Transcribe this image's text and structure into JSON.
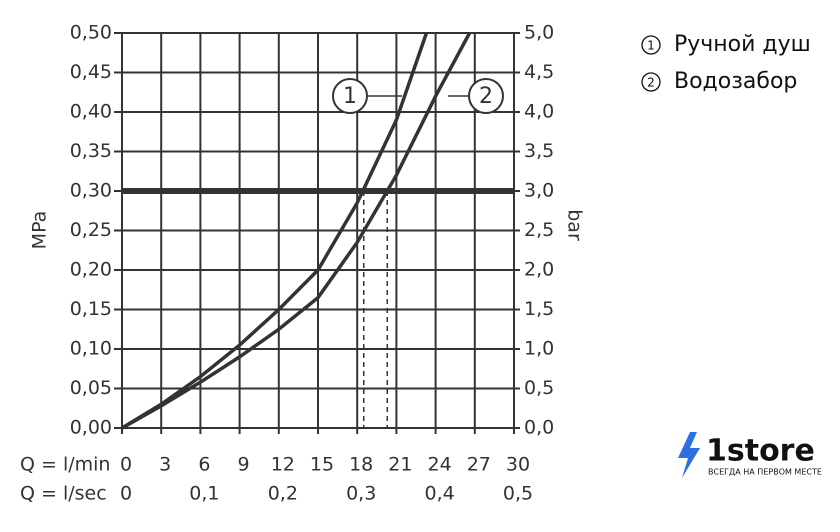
{
  "chart_data": {
    "type": "line",
    "ylabel": "MPa",
    "y2label": "bar",
    "xlabel": "Q = l/min",
    "x2label": "Q = l/sec",
    "xlim": [
      0,
      30
    ],
    "xticks": [
      0,
      3,
      6,
      9,
      12,
      15,
      18,
      21,
      24,
      27,
      30
    ],
    "x2lim": [
      0,
      0.5
    ],
    "x2ticks": [
      0,
      {
        "value": 0.1,
        "label": "0,1"
      },
      {
        "value": 0.2,
        "label": "0,2"
      },
      {
        "value": 0.3,
        "label": "0,3"
      },
      {
        "value": 0.4,
        "label": "0,4"
      },
      {
        "value": 0.5,
        "label": "0,5"
      }
    ],
    "ylim": [
      0,
      0.5
    ],
    "yticks": [
      {
        "value": 0,
        "label": "0,00"
      },
      {
        "value": 0.05,
        "label": "0,05"
      },
      {
        "value": 0.1,
        "label": "0,10"
      },
      {
        "value": 0.15,
        "label": "0,15"
      },
      {
        "value": 0.2,
        "label": "0,20"
      },
      {
        "value": 0.25,
        "label": "0,25"
      },
      {
        "value": 0.3,
        "label": "0,30"
      },
      {
        "value": 0.35,
        "label": "0,35"
      },
      {
        "value": 0.4,
        "label": "0,40"
      },
      {
        "value": 0.45,
        "label": "0,45"
      },
      {
        "value": 0.5,
        "label": "0,50"
      }
    ],
    "y2lim": [
      0,
      5
    ],
    "y2ticks": [
      {
        "value": 0,
        "label": "0,0"
      },
      {
        "value": 0.5,
        "label": "0,5"
      },
      {
        "value": 1,
        "label": "1,0"
      },
      {
        "value": 1.5,
        "label": "1,5"
      },
      {
        "value": 2,
        "label": "2,0"
      },
      {
        "value": 2.5,
        "label": "2,5"
      },
      {
        "value": 3,
        "label": "3,0"
      },
      {
        "value": 3.5,
        "label": "3,5"
      },
      {
        "value": 4,
        "label": "4,0"
      },
      {
        "value": 4.5,
        "label": "4,5"
      },
      {
        "value": 5,
        "label": "5,0"
      }
    ],
    "grid": true,
    "hline": 0.3,
    "drop_lines": [
      {
        "x": 18.5,
        "y": 0.3
      },
      {
        "x": 20.3,
        "y": 0.3
      }
    ],
    "color": "#333333",
    "series": [
      {
        "name": "Ручной душ",
        "marker": "1",
        "color": "#333333",
        "x": [
          0,
          3,
          6,
          9,
          12,
          15,
          18,
          21,
          23.3
        ],
        "values": [
          0,
          0.03,
          0.065,
          0.105,
          0.15,
          0.2,
          0.285,
          0.39,
          0.5
        ]
      },
      {
        "name": "Водозабор",
        "marker": "2",
        "color": "#333333",
        "x": [
          0,
          3,
          6,
          9,
          12,
          15,
          18,
          21,
          24,
          26.6
        ],
        "values": [
          0,
          0.028,
          0.058,
          0.09,
          0.125,
          0.165,
          0.235,
          0.32,
          0.42,
          0.5
        ]
      }
    ]
  },
  "logo": {
    "name": "1store",
    "tagline": "ВСЕГДА НА ПЕРВОМ МЕСТЕ"
  }
}
